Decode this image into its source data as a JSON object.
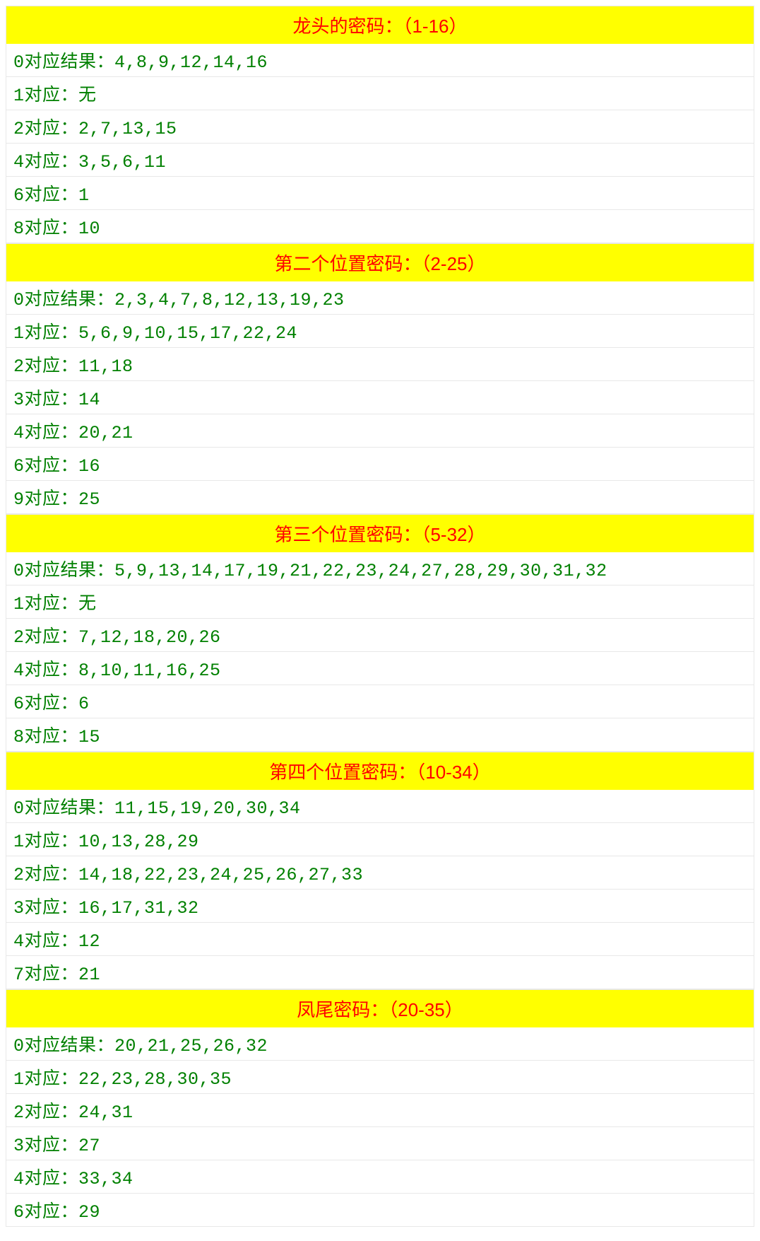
{
  "sections": [
    {
      "header": "龙头的密码：（1-16）",
      "rows": [
        "0对应结果：4,8,9,12,14,16",
        "1对应：无",
        "2对应：2,7,13,15",
        "4对应：3,5,6,11",
        "6对应：1",
        "8对应：10"
      ]
    },
    {
      "header": "第二个位置密码：（2-25）",
      "rows": [
        "0对应结果：2,3,4,7,8,12,13,19,23",
        "1对应：5,6,9,10,15,17,22,24",
        "2对应：11,18",
        "3对应：14",
        "4对应：20,21",
        "6对应：16",
        "9对应：25"
      ]
    },
    {
      "header": "第三个位置密码：（5-32）",
      "rows": [
        "0对应结果：5,9,13,14,17,19,21,22,23,24,27,28,29,30,31,32",
        "1对应：无",
        "2对应：7,12,18,20,26",
        "4对应：8,10,11,16,25",
        "6对应：6",
        "8对应：15"
      ]
    },
    {
      "header": "第四个位置密码：（10-34）",
      "rows": [
        "0对应结果：11,15,19,20,30,34",
        "1对应：10,13,28,29",
        "2对应：14,18,22,23,24,25,26,27,33",
        "3对应：16,17,31,32",
        "4对应：12",
        "7对应：21"
      ]
    },
    {
      "header": "凤尾密码：（20-35）",
      "rows": [
        "0对应结果：20,21,25,26,32",
        "1对应：22,23,28,30,35",
        "2对应：24,31",
        "3对应：27",
        "4对应：33,34",
        "6对应：29"
      ]
    }
  ],
  "styling": {
    "header_bg_color": "#ffff00",
    "header_text_color": "#ff0000",
    "row_bg_color": "#ffffff",
    "row_text_color": "#008000",
    "border_color": "#e8e8e8",
    "header_font_size": 26,
    "row_font_size": 25
  }
}
